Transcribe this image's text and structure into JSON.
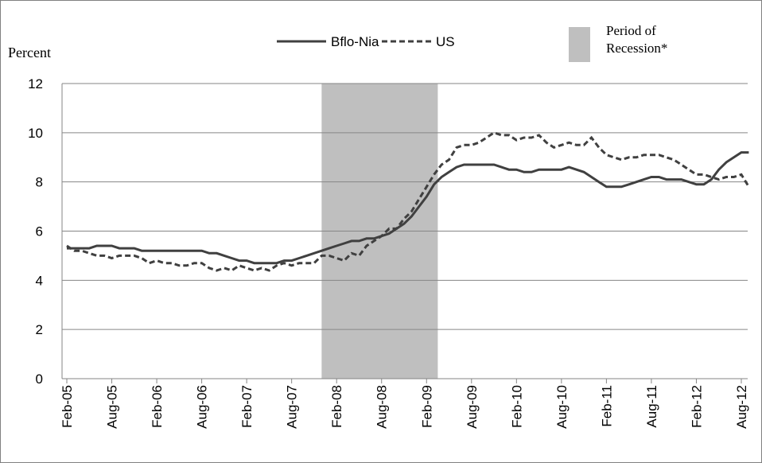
{
  "chart_data": {
    "type": "line",
    "y_axis_label": "Percent",
    "categories": [
      "Feb-05",
      null,
      null,
      null,
      null,
      null,
      "Aug-05",
      null,
      null,
      null,
      null,
      null,
      "Feb-06",
      null,
      null,
      null,
      null,
      null,
      "Aug-06",
      null,
      null,
      null,
      null,
      null,
      "Feb-07",
      null,
      null,
      null,
      null,
      null,
      "Aug-07",
      null,
      null,
      null,
      null,
      null,
      "Feb-08",
      null,
      null,
      null,
      null,
      null,
      "Aug-08",
      null,
      null,
      null,
      null,
      null,
      "Feb-09",
      null,
      null,
      null,
      null,
      null,
      "Aug-09",
      null,
      null,
      null,
      null,
      null,
      "Feb-10",
      null,
      null,
      null,
      null,
      null,
      "Aug-10",
      null,
      null,
      null,
      null,
      null,
      "Feb-11",
      null,
      null,
      null,
      null,
      null,
      "Aug-11",
      null,
      null,
      null,
      null,
      null,
      "Feb-12",
      null,
      null,
      null,
      null,
      null,
      "Aug-12",
      null
    ],
    "series": [
      {
        "name": "Bflo-Nia",
        "color": "#404040",
        "dash": false,
        "values": [
          5.3,
          5.3,
          5.3,
          5.3,
          5.4,
          5.4,
          5.4,
          5.3,
          5.3,
          5.3,
          5.2,
          5.2,
          5.2,
          5.2,
          5.2,
          5.2,
          5.2,
          5.2,
          5.2,
          5.1,
          5.1,
          5.0,
          4.9,
          4.8,
          4.8,
          4.7,
          4.7,
          4.7,
          4.7,
          4.8,
          4.8,
          4.9,
          5.0,
          5.1,
          5.2,
          5.3,
          5.4,
          5.5,
          5.6,
          5.6,
          5.7,
          5.7,
          5.8,
          5.9,
          6.1,
          6.3,
          6.6,
          7.0,
          7.4,
          7.9,
          8.2,
          8.4,
          8.6,
          8.7,
          8.7,
          8.7,
          8.7,
          8.7,
          8.6,
          8.5,
          8.5,
          8.4,
          8.4,
          8.5,
          8.5,
          8.5,
          8.5,
          8.6,
          8.5,
          8.4,
          8.2,
          8.0,
          7.8,
          7.8,
          7.8,
          7.9,
          8.0,
          8.1,
          8.2,
          8.2,
          8.1,
          8.1,
          8.1,
          8.0,
          7.9,
          7.9,
          8.1,
          8.5,
          8.8,
          9.0,
          9.2,
          9.2
        ]
      },
      {
        "name": "US",
        "color": "#404040",
        "dash": true,
        "values": [
          5.4,
          5.2,
          5.2,
          5.1,
          5.0,
          5.0,
          4.9,
          5.0,
          5.0,
          5.0,
          4.9,
          4.7,
          4.8,
          4.7,
          4.7,
          4.6,
          4.6,
          4.7,
          4.7,
          4.5,
          4.4,
          4.5,
          4.4,
          4.6,
          4.5,
          4.4,
          4.5,
          4.4,
          4.6,
          4.7,
          4.6,
          4.7,
          4.7,
          4.7,
          5.0,
          5.0,
          4.9,
          4.8,
          5.1,
          5.0,
          5.4,
          5.6,
          5.8,
          6.1,
          6.1,
          6.5,
          6.8,
          7.3,
          7.8,
          8.3,
          8.7,
          8.9,
          9.4,
          9.5,
          9.5,
          9.6,
          9.8,
          10.0,
          9.9,
          9.9,
          9.7,
          9.8,
          9.8,
          9.9,
          9.6,
          9.4,
          9.5,
          9.6,
          9.5,
          9.5,
          9.8,
          9.4,
          9.1,
          9.0,
          8.9,
          9.0,
          9.0,
          9.1,
          9.1,
          9.1,
          9.0,
          8.9,
          8.7,
          8.5,
          8.3,
          8.3,
          8.2,
          8.1,
          8.2,
          8.2,
          8.3,
          7.8
        ]
      }
    ],
    "shaded_region": {
      "label": "Period of Recession*",
      "start": 34,
      "end": 49.5,
      "color": "#bfbfbf"
    },
    "ylim": [
      0,
      12
    ],
    "yticks": [
      0,
      2,
      4,
      6,
      8,
      10,
      12
    ],
    "grid": true
  }
}
